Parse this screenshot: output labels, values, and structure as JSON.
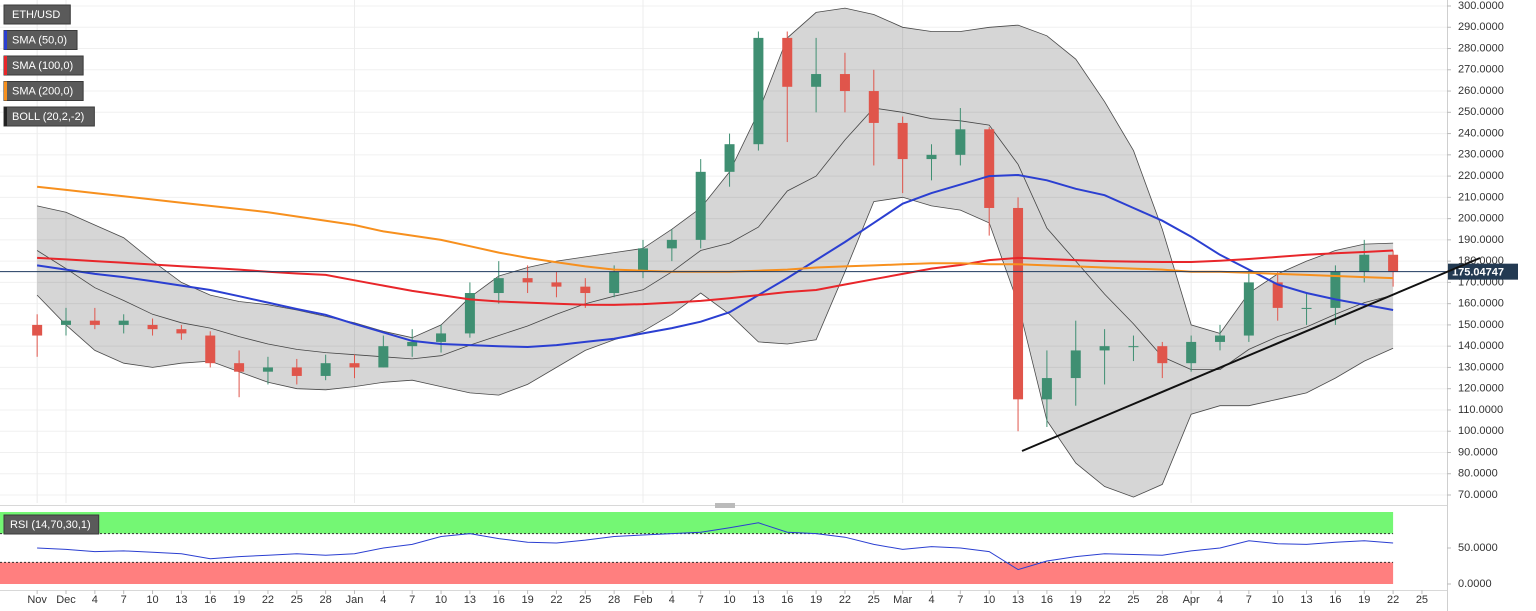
{
  "chart_data": {
    "type": "candlestick",
    "title": "ETH/USD",
    "categories": [
      "Nov",
      "Dec",
      "4",
      "7",
      "10",
      "13",
      "16",
      "19",
      "22",
      "25",
      "28",
      "Jan",
      "4",
      "7",
      "10",
      "13",
      "16",
      "19",
      "22",
      "25",
      "28",
      "Feb",
      "4",
      "7",
      "10",
      "13",
      "16",
      "19",
      "22",
      "25",
      "Mar",
      "4",
      "7",
      "10",
      "13",
      "16",
      "19",
      "22",
      "25",
      "28",
      "Apr",
      "4",
      "7",
      "10",
      "13",
      "16",
      "19",
      "22",
      "25"
    ],
    "open": [
      150,
      150,
      152,
      150,
      150,
      148,
      145,
      132,
      128,
      130,
      126,
      132,
      130,
      140,
      142,
      146,
      165,
      172,
      170,
      168,
      165,
      175,
      186,
      190,
      222,
      235,
      285,
      262,
      268,
      260,
      245,
      228,
      230,
      242,
      205,
      115,
      125,
      138,
      140,
      140,
      132,
      142,
      145,
      170,
      158,
      158,
      175,
      183,
      null
    ],
    "high": [
      155,
      158,
      158,
      155,
      153,
      150,
      147,
      138,
      135,
      134,
      136,
      136,
      145,
      148,
      150,
      170,
      180,
      178,
      175,
      172,
      178,
      190,
      195,
      228,
      240,
      288,
      288,
      285,
      278,
      270,
      248,
      235,
      252,
      243,
      210,
      138,
      152,
      148,
      145,
      142,
      145,
      150,
      176,
      175,
      165,
      178,
      190,
      185,
      null
    ],
    "low": [
      135,
      145,
      148,
      146,
      145,
      143,
      130,
      116,
      122,
      122,
      124,
      125,
      130,
      135,
      137,
      144,
      160,
      165,
      163,
      158,
      163,
      172,
      180,
      186,
      215,
      232,
      236,
      250,
      250,
      225,
      212,
      218,
      225,
      192,
      100,
      102,
      112,
      122,
      133,
      125,
      128,
      138,
      142,
      152,
      150,
      150,
      170,
      168,
      null
    ],
    "close": [
      145,
      152,
      150,
      152,
      148,
      146,
      132,
      128,
      130,
      126,
      132,
      130,
      140,
      142,
      146,
      165,
      172,
      170,
      168,
      165,
      175,
      186,
      190,
      222,
      235,
      285,
      262,
      268,
      260,
      245,
      228,
      230,
      242,
      205,
      115,
      125,
      138,
      140,
      140,
      132,
      142,
      145,
      170,
      158,
      158,
      175,
      183,
      175,
      null
    ],
    "up_color": "#3f8f72",
    "down_color": "#e0554b",
    "series": [
      {
        "name": "SMA (50,0)",
        "color": "#2b3fd1",
        "values": [
          178,
          176,
          174,
          172.5,
          170.5,
          168.5,
          166.4,
          163.5,
          160.5,
          157.5,
          154.7,
          150.5,
          146.5,
          142.5,
          141,
          140.5,
          140,
          139.6,
          140.5,
          142,
          143.5,
          146,
          148.5,
          151.5,
          156,
          164,
          172,
          180.5,
          189,
          198,
          207,
          212,
          216,
          220,
          220.5,
          218,
          214,
          211,
          205,
          199,
          191.5,
          183,
          176,
          169,
          165,
          162,
          159.5,
          157,
          null
        ]
      },
      {
        "name": "SMA (100,0)",
        "color": "#e8262a",
        "values": [
          181.5,
          180.8,
          180,
          179.2,
          178.4,
          177.6,
          176.8,
          176,
          175,
          174.2,
          173.5,
          171,
          168.5,
          166,
          164,
          162,
          161,
          160.5,
          160,
          159.5,
          159.4,
          159.8,
          160.5,
          161.3,
          162.5,
          164,
          165.5,
          166.4,
          169,
          171.5,
          174,
          176.5,
          178.2,
          180.5,
          181.5,
          181,
          180.5,
          180,
          179.8,
          179.6,
          179.6,
          180.2,
          181,
          182,
          183,
          183.7,
          184.3,
          185,
          null
        ]
      },
      {
        "name": "SMA (200,0)",
        "color": "#f7901e",
        "values": [
          215,
          213.5,
          212,
          210.5,
          209,
          207.5,
          206,
          204.5,
          203,
          201,
          199,
          197,
          194,
          192,
          190,
          187,
          184,
          181.5,
          179.5,
          177.5,
          176,
          175.5,
          175,
          175,
          175,
          175.5,
          176,
          177,
          177.5,
          178,
          178.5,
          179,
          179,
          178.5,
          178.5,
          178,
          177.5,
          177,
          176.5,
          176,
          175,
          175,
          174.5,
          174,
          173.5,
          173,
          172.5,
          172,
          null
        ]
      }
    ],
    "bands": {
      "name": "BOLL (20,2,-2)",
      "color": "#222222",
      "upper": [
        206,
        203,
        197,
        191,
        180,
        170,
        164,
        161,
        159.5,
        157,
        154,
        151,
        147,
        144,
        150,
        163,
        173,
        177,
        180,
        182,
        184,
        186,
        195,
        205,
        222,
        250,
        285,
        297,
        299,
        296,
        290,
        288,
        288,
        290,
        291,
        286,
        275,
        255,
        232,
        195,
        150,
        146,
        165,
        174,
        180,
        185,
        188,
        188.5,
        null
      ],
      "middle": [
        185,
        176.5,
        167.5,
        161.5,
        155,
        151,
        148.5,
        144.5,
        141,
        138.5,
        137,
        136,
        135,
        134,
        135.5,
        140.5,
        145,
        149.5,
        155,
        160,
        163.5,
        166.5,
        175,
        185,
        188.5,
        196,
        213,
        220,
        237,
        252,
        250,
        247,
        246,
        244,
        225.5,
        195.5,
        180,
        164.5,
        150.5,
        135,
        129,
        129,
        138.5,
        144.5,
        149,
        155,
        160.5,
        164,
        null
      ],
      "lower": [
        164,
        150,
        138,
        132,
        130,
        132,
        133,
        128,
        123,
        120,
        119.5,
        121,
        123,
        124,
        121,
        118,
        117,
        122,
        130,
        138,
        143,
        147,
        155,
        165,
        155,
        142,
        141,
        143,
        175,
        208,
        210,
        206,
        204,
        198,
        160,
        105,
        85,
        74,
        69,
        75,
        108,
        112,
        112,
        115,
        118,
        125,
        133,
        139,
        null
      ]
    },
    "last_price": {
      "value": 175.04747,
      "label": "175.04747"
    },
    "ylim": [
      70,
      300
    ],
    "yticks": [
      {
        "value": 70,
        "label": "70.0000"
      },
      {
        "value": 80,
        "label": "80.0000"
      },
      {
        "value": 90,
        "label": "90.0000"
      },
      {
        "value": 100,
        "label": "100.0000"
      },
      {
        "value": 110,
        "label": "110.0000"
      },
      {
        "value": 120,
        "label": "120.0000"
      },
      {
        "value": 130,
        "label": "130.0000"
      },
      {
        "value": 140,
        "label": "140.0000"
      },
      {
        "value": 150,
        "label": "150.0000"
      },
      {
        "value": 160,
        "label": "160.0000"
      },
      {
        "value": 170,
        "label": "170.0000"
      },
      {
        "value": 180,
        "label": "180.0000"
      },
      {
        "value": 190,
        "label": "190.0000"
      },
      {
        "value": 200,
        "label": "200.0000"
      },
      {
        "value": 210,
        "label": "210.0000"
      },
      {
        "value": 220,
        "label": "220.0000"
      },
      {
        "value": 230,
        "label": "230.0000"
      },
      {
        "value": 240,
        "label": "240.0000"
      },
      {
        "value": 250,
        "label": "250.0000"
      },
      {
        "value": 260,
        "label": "260.0000"
      },
      {
        "value": 270,
        "label": "270.0000"
      },
      {
        "value": 280,
        "label": "280.0000"
      },
      {
        "value": 290,
        "label": "290.0000"
      },
      {
        "value": 300,
        "label": "300.0000"
      }
    ],
    "grid": true,
    "rsi": {
      "name": "RSI (14,70,30,1)",
      "color": "#2b3fd1",
      "values": [
        50,
        48,
        45,
        46,
        44,
        42,
        35,
        38,
        40,
        42,
        40,
        42,
        50,
        55,
        66,
        70,
        63,
        58,
        57,
        61,
        66,
        68,
        70,
        72,
        78,
        85,
        72,
        70,
        65,
        55,
        48,
        52,
        50,
        45,
        20,
        32,
        38,
        42,
        41,
        40,
        46,
        50,
        60,
        56,
        55,
        58,
        60,
        57,
        null
      ],
      "overbought": 70,
      "oversold": 30,
      "overbought_color": "#74f774",
      "oversold_color": "#ff7f7f",
      "ylim": [
        0,
        100
      ],
      "yticks": [
        {
          "value": 0,
          "label": "0.0000"
        },
        {
          "value": 50,
          "label": "50.0000"
        }
      ]
    }
  }
}
